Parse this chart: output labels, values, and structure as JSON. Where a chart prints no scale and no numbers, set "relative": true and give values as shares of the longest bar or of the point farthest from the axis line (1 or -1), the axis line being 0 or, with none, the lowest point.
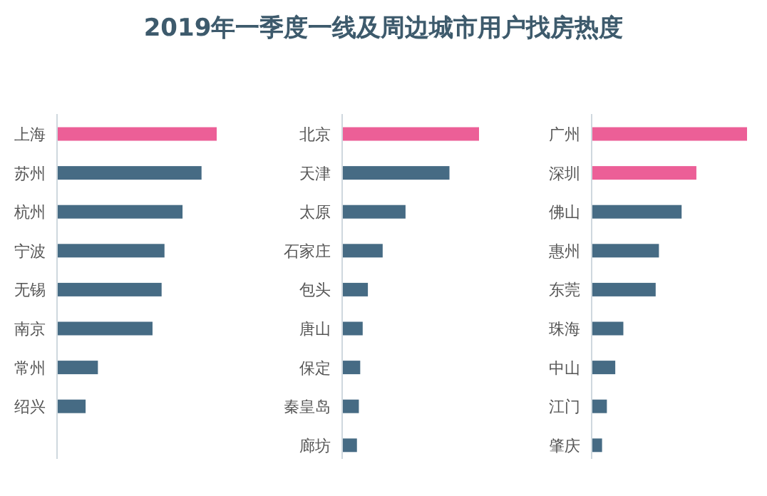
{
  "chart_data": [
    {
      "type": "bar",
      "title": "2019年一季度一线及周边城市用户找房热度",
      "orientation": "horizontal",
      "relative": true,
      "categories": [
        "上海",
        "苏州",
        "杭州",
        "宁波",
        "无锡",
        "南京",
        "常州",
        "绍兴"
      ],
      "values": [
        1,
        0.905,
        0.786,
        0.673,
        0.655,
        0.598,
        0.256,
        0.179
      ],
      "colors": [
        "#ec5f97",
        "#466b84",
        "#466b84",
        "#466b84",
        "#466b84",
        "#466b84",
        "#466b84",
        "#466b84"
      ]
    },
    {
      "type": "bar",
      "orientation": "horizontal",
      "relative": true,
      "categories": [
        "北京",
        "天津",
        "太原",
        "石家庄",
        "包头",
        "唐山",
        "保定",
        "秦皇岛",
        "廊坊"
      ],
      "values": [
        1,
        0.784,
        0.463,
        0.296,
        0.188,
        0.15,
        0.132,
        0.122,
        0.108
      ],
      "colors": [
        "#ec5f97",
        "#466b84",
        "#466b84",
        "#466b84",
        "#466b84",
        "#466b84",
        "#466b84",
        "#466b84",
        "#466b84"
      ]
    },
    {
      "type": "bar",
      "orientation": "horizontal",
      "relative": true,
      "categories": [
        "广州",
        "深圳",
        "佛山",
        "惠州",
        "东莞",
        "珠海",
        "中山",
        "江门",
        "肇庆"
      ],
      "values": [
        1,
        0.674,
        0.579,
        0.433,
        0.412,
        0.204,
        0.152,
        0.098,
        0.067
      ],
      "colors": [
        "#ec5f97",
        "#ec5f97",
        "#466b84",
        "#466b84",
        "#466b84",
        "#466b84",
        "#466b84",
        "#466b84",
        "#466b84"
      ]
    }
  ]
}
